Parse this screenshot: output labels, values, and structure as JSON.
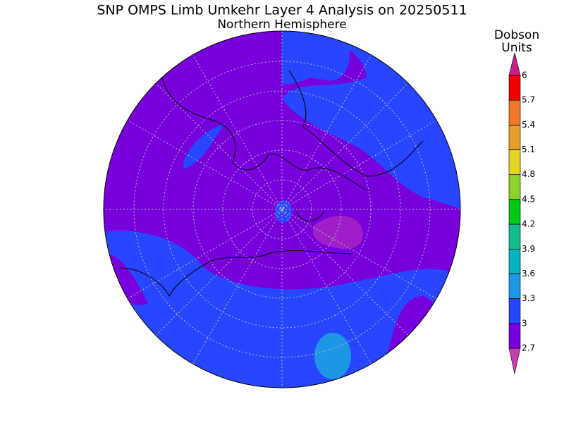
{
  "title": "SNP OMPS Limb Umkehr Layer 4 Analysis on 20250511",
  "subtitle": "Northern Hemisphere",
  "colorbar": {
    "label_lines": [
      "Dobson",
      "Units"
    ],
    "ticks": [
      2.7,
      3,
      3.3,
      3.6,
      3.9,
      4.2,
      4.5,
      4.8,
      5.1,
      5.4,
      5.7,
      6
    ],
    "colors": [
      "#7800dc",
      "#2846ff",
      "#1e96e6",
      "#00b4c0",
      "#10be8c",
      "#00c814",
      "#8cd22a",
      "#e6d228",
      "#e6a028",
      "#f07828",
      "#f00000"
    ],
    "under_color": "#c83cb4",
    "over_color": "#c81e8c"
  }
}
